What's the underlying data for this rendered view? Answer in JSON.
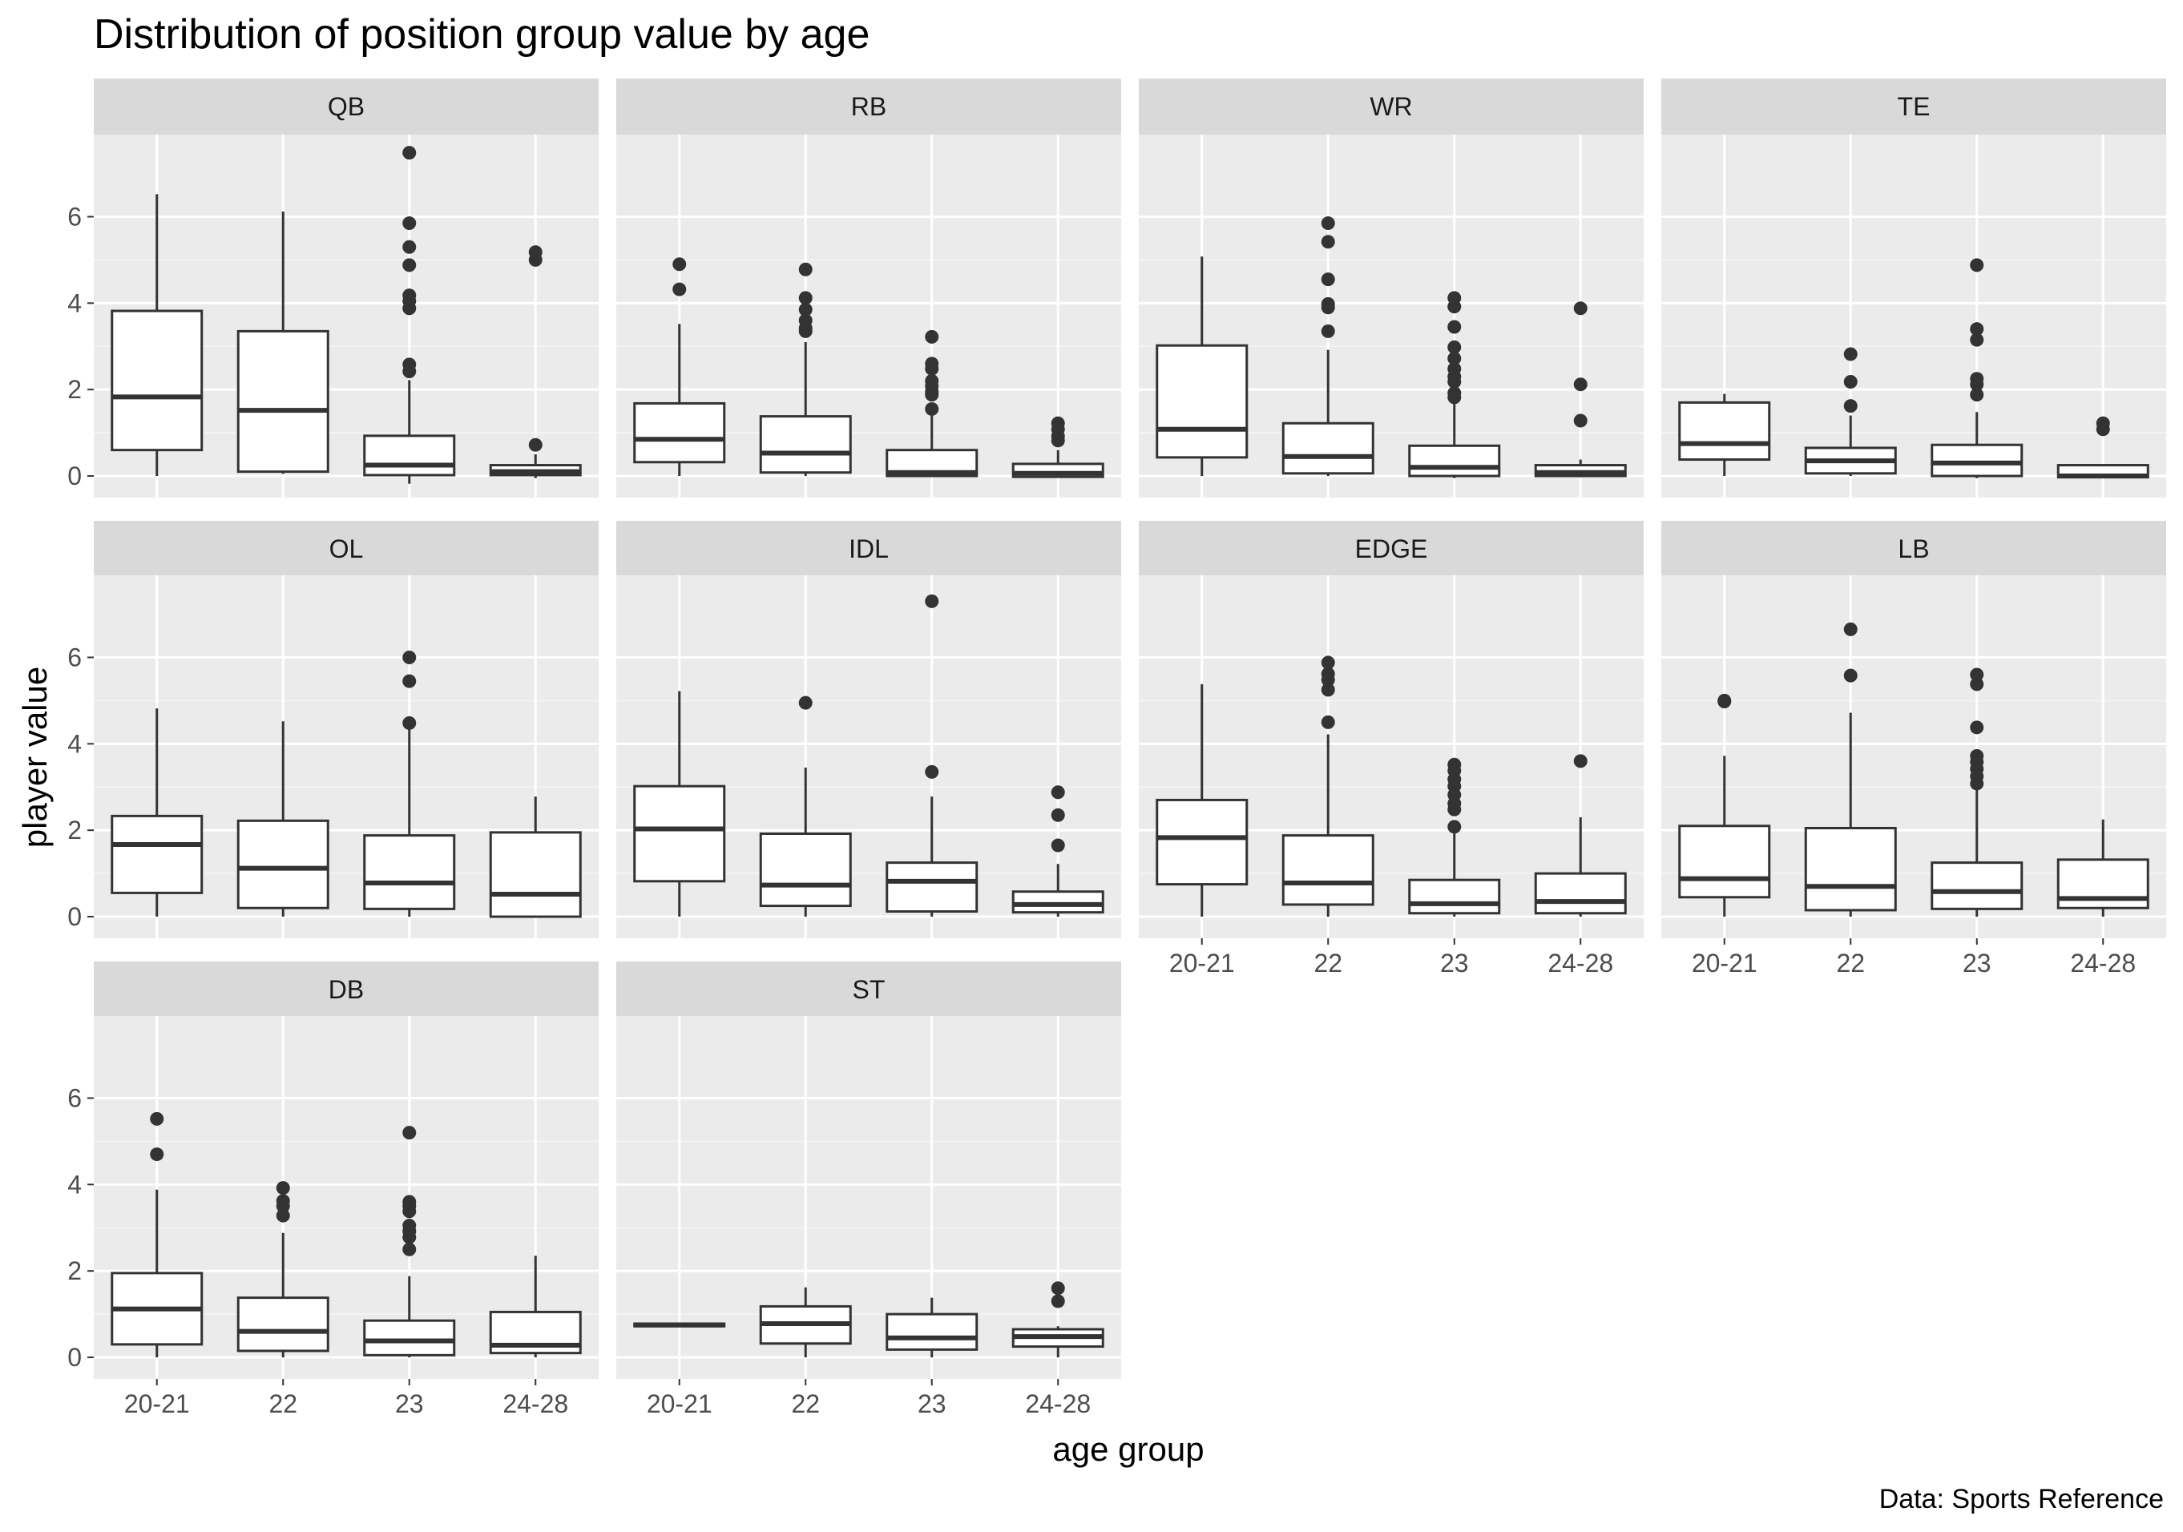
{
  "chart_data": {
    "type": "boxplot",
    "title": "Distribution of position group value by age",
    "xlabel": "age group",
    "ylabel": "player value",
    "caption": "Data: Sports Reference",
    "categories": [
      "20-21",
      "22",
      "23",
      "24-28"
    ],
    "y_ticks": [
      0,
      2,
      4,
      6
    ],
    "ylim": [
      -0.5,
      7.9
    ],
    "facet_layout": "wrap, 4 columns",
    "grid": true,
    "colors": {
      "panel_bg": "#ebebeb",
      "strip_bg": "#d9d9d9",
      "grid_major": "#ffffff",
      "grid_minor": "#f5f5f5",
      "box_fill": "#ffffff",
      "box_line": "#333333",
      "outlier": "#333333"
    },
    "facets": [
      {
        "name": "QB",
        "boxes": [
          {
            "category": "20-21",
            "min": 0,
            "q1": 0.6,
            "median": 1.83,
            "q3": 3.82,
            "max": 6.52,
            "outliers": []
          },
          {
            "category": "22",
            "min": 0.05,
            "q1": 0.1,
            "median": 1.52,
            "q3": 3.35,
            "max": 6.12,
            "outliers": []
          },
          {
            "category": "23",
            "min": -0.18,
            "q1": 0.02,
            "median": 0.25,
            "q3": 0.93,
            "max": 2.22,
            "outliers": [
              7.48,
              5.85,
              5.3,
              4.88,
              4.18,
              4.05,
              3.88,
              2.58,
              2.42
            ]
          },
          {
            "category": "24-28",
            "min": -0.05,
            "q1": 0.02,
            "median": 0.1,
            "q3": 0.25,
            "max": 0.5,
            "outliers": [
              5.18,
              5.0,
              0.72
            ]
          }
        ]
      },
      {
        "name": "RB",
        "boxes": [
          {
            "category": "20-21",
            "min": 0,
            "q1": 0.32,
            "median": 0.85,
            "q3": 1.68,
            "max": 3.52,
            "outliers": [
              4.9,
              4.32
            ]
          },
          {
            "category": "22",
            "min": 0,
            "q1": 0.08,
            "median": 0.53,
            "q3": 1.38,
            "max": 3.1,
            "outliers": [
              4.78,
              4.12,
              3.85,
              3.6,
              3.42,
              3.35
            ]
          },
          {
            "category": "23",
            "min": -0.02,
            "q1": 0.0,
            "median": 0.08,
            "q3": 0.6,
            "max": 1.42,
            "outliers": [
              3.22,
              2.6,
              2.48,
              2.2,
              2.08,
              1.95,
              1.88,
              1.55
            ]
          },
          {
            "category": "24-28",
            "min": -0.02,
            "q1": -0.02,
            "median": 0.06,
            "q3": 0.28,
            "max": 0.6,
            "outliers": [
              1.22,
              1.08,
              0.92,
              0.82
            ]
          }
        ]
      },
      {
        "name": "WR",
        "boxes": [
          {
            "category": "20-21",
            "min": 0,
            "q1": 0.43,
            "median": 1.08,
            "q3": 3.02,
            "max": 5.08,
            "outliers": []
          },
          {
            "category": "22",
            "min": 0,
            "q1": 0.06,
            "median": 0.45,
            "q3": 1.22,
            "max": 2.92,
            "outliers": [
              5.85,
              5.42,
              4.55,
              3.98,
              3.9,
              3.35
            ]
          },
          {
            "category": "23",
            "min": -0.05,
            "q1": 0.0,
            "median": 0.2,
            "q3": 0.7,
            "max": 1.72,
            "outliers": [
              4.12,
              3.92,
              3.45,
              2.98,
              2.72,
              2.48,
              2.3,
              2.18,
              1.92,
              1.82
            ]
          },
          {
            "category": "24-28",
            "min": -0.03,
            "q1": 0.0,
            "median": 0.08,
            "q3": 0.25,
            "max": 0.38,
            "outliers": [
              3.88,
              2.12,
              1.28
            ]
          }
        ]
      },
      {
        "name": "TE",
        "boxes": [
          {
            "category": "20-21",
            "min": 0,
            "q1": 0.38,
            "median": 0.75,
            "q3": 1.7,
            "max": 1.9,
            "outliers": []
          },
          {
            "category": "22",
            "min": 0,
            "q1": 0.06,
            "median": 0.35,
            "q3": 0.65,
            "max": 1.4,
            "outliers": [
              2.82,
              2.18,
              1.62
            ]
          },
          {
            "category": "23",
            "min": -0.05,
            "q1": 0.0,
            "median": 0.3,
            "q3": 0.72,
            "max": 1.48,
            "outliers": [
              4.88,
              3.4,
              3.15,
              2.25,
              2.12,
              1.88
            ]
          },
          {
            "category": "24-28",
            "min": -0.03,
            "q1": -0.03,
            "median": 0.0,
            "q3": 0.25,
            "max": 0.25,
            "outliers": [
              1.22,
              1.08
            ]
          }
        ]
      },
      {
        "name": "OL",
        "boxes": [
          {
            "category": "20-21",
            "min": 0,
            "q1": 0.55,
            "median": 1.67,
            "q3": 2.33,
            "max": 4.82,
            "outliers": []
          },
          {
            "category": "22",
            "min": 0,
            "q1": 0.2,
            "median": 1.12,
            "q3": 2.22,
            "max": 4.52,
            "outliers": []
          },
          {
            "category": "23",
            "min": 0,
            "q1": 0.18,
            "median": 0.78,
            "q3": 1.88,
            "max": 4.42,
            "outliers": [
              6.0,
              5.45,
              4.48
            ]
          },
          {
            "category": "24-28",
            "min": 0,
            "q1": 0.0,
            "median": 0.52,
            "q3": 1.95,
            "max": 2.78,
            "outliers": []
          }
        ]
      },
      {
        "name": "IDL",
        "boxes": [
          {
            "category": "20-21",
            "min": 0,
            "q1": 0.82,
            "median": 2.03,
            "q3": 3.02,
            "max": 5.22,
            "outliers": []
          },
          {
            "category": "22",
            "min": 0,
            "q1": 0.25,
            "median": 0.73,
            "q3": 1.92,
            "max": 3.45,
            "outliers": [
              4.95
            ]
          },
          {
            "category": "23",
            "min": 0,
            "q1": 0.12,
            "median": 0.82,
            "q3": 1.25,
            "max": 2.78,
            "outliers": [
              7.3,
              3.35
            ]
          },
          {
            "category": "24-28",
            "min": 0,
            "q1": 0.1,
            "median": 0.28,
            "q3": 0.58,
            "max": 1.22,
            "outliers": [
              2.88,
              2.35,
              1.65
            ]
          }
        ]
      },
      {
        "name": "EDGE",
        "boxes": [
          {
            "category": "20-21",
            "min": 0,
            "q1": 0.75,
            "median": 1.83,
            "q3": 2.7,
            "max": 5.38,
            "outliers": []
          },
          {
            "category": "22",
            "min": 0,
            "q1": 0.28,
            "median": 0.78,
            "q3": 1.88,
            "max": 4.22,
            "outliers": [
              5.88,
              5.62,
              5.48,
              5.25,
              4.5
            ]
          },
          {
            "category": "23",
            "min": 0,
            "q1": 0.08,
            "median": 0.3,
            "q3": 0.85,
            "max": 1.98,
            "outliers": [
              3.52,
              3.38,
              3.18,
              3.02,
              2.82,
              2.62,
              2.48,
              2.08
            ]
          },
          {
            "category": "24-28",
            "min": 0,
            "q1": 0.08,
            "median": 0.35,
            "q3": 1.0,
            "max": 2.3,
            "outliers": [
              3.6
            ]
          }
        ]
      },
      {
        "name": "LB",
        "boxes": [
          {
            "category": "20-21",
            "min": 0,
            "q1": 0.45,
            "median": 0.88,
            "q3": 2.1,
            "max": 3.72,
            "outliers": [
              5.0,
              4.98
            ]
          },
          {
            "category": "22",
            "min": 0,
            "q1": 0.15,
            "median": 0.7,
            "q3": 2.05,
            "max": 4.72,
            "outliers": [
              6.65,
              5.58
            ]
          },
          {
            "category": "23",
            "min": 0,
            "q1": 0.18,
            "median": 0.58,
            "q3": 1.25,
            "max": 2.95,
            "outliers": [
              5.6,
              5.38,
              4.38,
              3.72,
              3.58,
              3.42,
              3.25,
              3.08
            ]
          },
          {
            "category": "24-28",
            "min": 0,
            "q1": 0.2,
            "median": 0.42,
            "q3": 1.32,
            "max": 2.25,
            "outliers": []
          }
        ]
      },
      {
        "name": "DB",
        "boxes": [
          {
            "category": "20-21",
            "min": 0,
            "q1": 0.3,
            "median": 1.12,
            "q3": 1.95,
            "max": 3.88,
            "outliers": [
              5.52,
              4.7
            ]
          },
          {
            "category": "22",
            "min": 0,
            "q1": 0.15,
            "median": 0.6,
            "q3": 1.38,
            "max": 2.88,
            "outliers": [
              3.92,
              3.62,
              3.5,
              3.28
            ]
          },
          {
            "category": "23",
            "min": 0,
            "q1": 0.05,
            "median": 0.38,
            "q3": 0.85,
            "max": 1.88,
            "outliers": [
              5.2,
              3.6,
              3.5,
              3.38,
              3.05,
              2.92,
              2.78,
              2.5
            ]
          },
          {
            "category": "24-28",
            "min": 0,
            "q1": 0.1,
            "median": 0.28,
            "q3": 1.05,
            "max": 2.35,
            "outliers": []
          }
        ]
      },
      {
        "name": "ST",
        "boxes": [
          {
            "category": "20-21",
            "min": 0.72,
            "q1": 0.72,
            "median": 0.75,
            "q3": 0.78,
            "max": 0.78,
            "outliers": []
          },
          {
            "category": "22",
            "min": 0,
            "q1": 0.32,
            "median": 0.78,
            "q3": 1.18,
            "max": 1.62,
            "outliers": []
          },
          {
            "category": "23",
            "min": 0,
            "q1": 0.18,
            "median": 0.45,
            "q3": 1.0,
            "max": 1.38,
            "outliers": []
          },
          {
            "category": "24-28",
            "min": 0,
            "q1": 0.25,
            "median": 0.48,
            "q3": 0.65,
            "max": 0.72,
            "outliers": [
              1.6,
              1.3
            ]
          }
        ]
      }
    ]
  }
}
